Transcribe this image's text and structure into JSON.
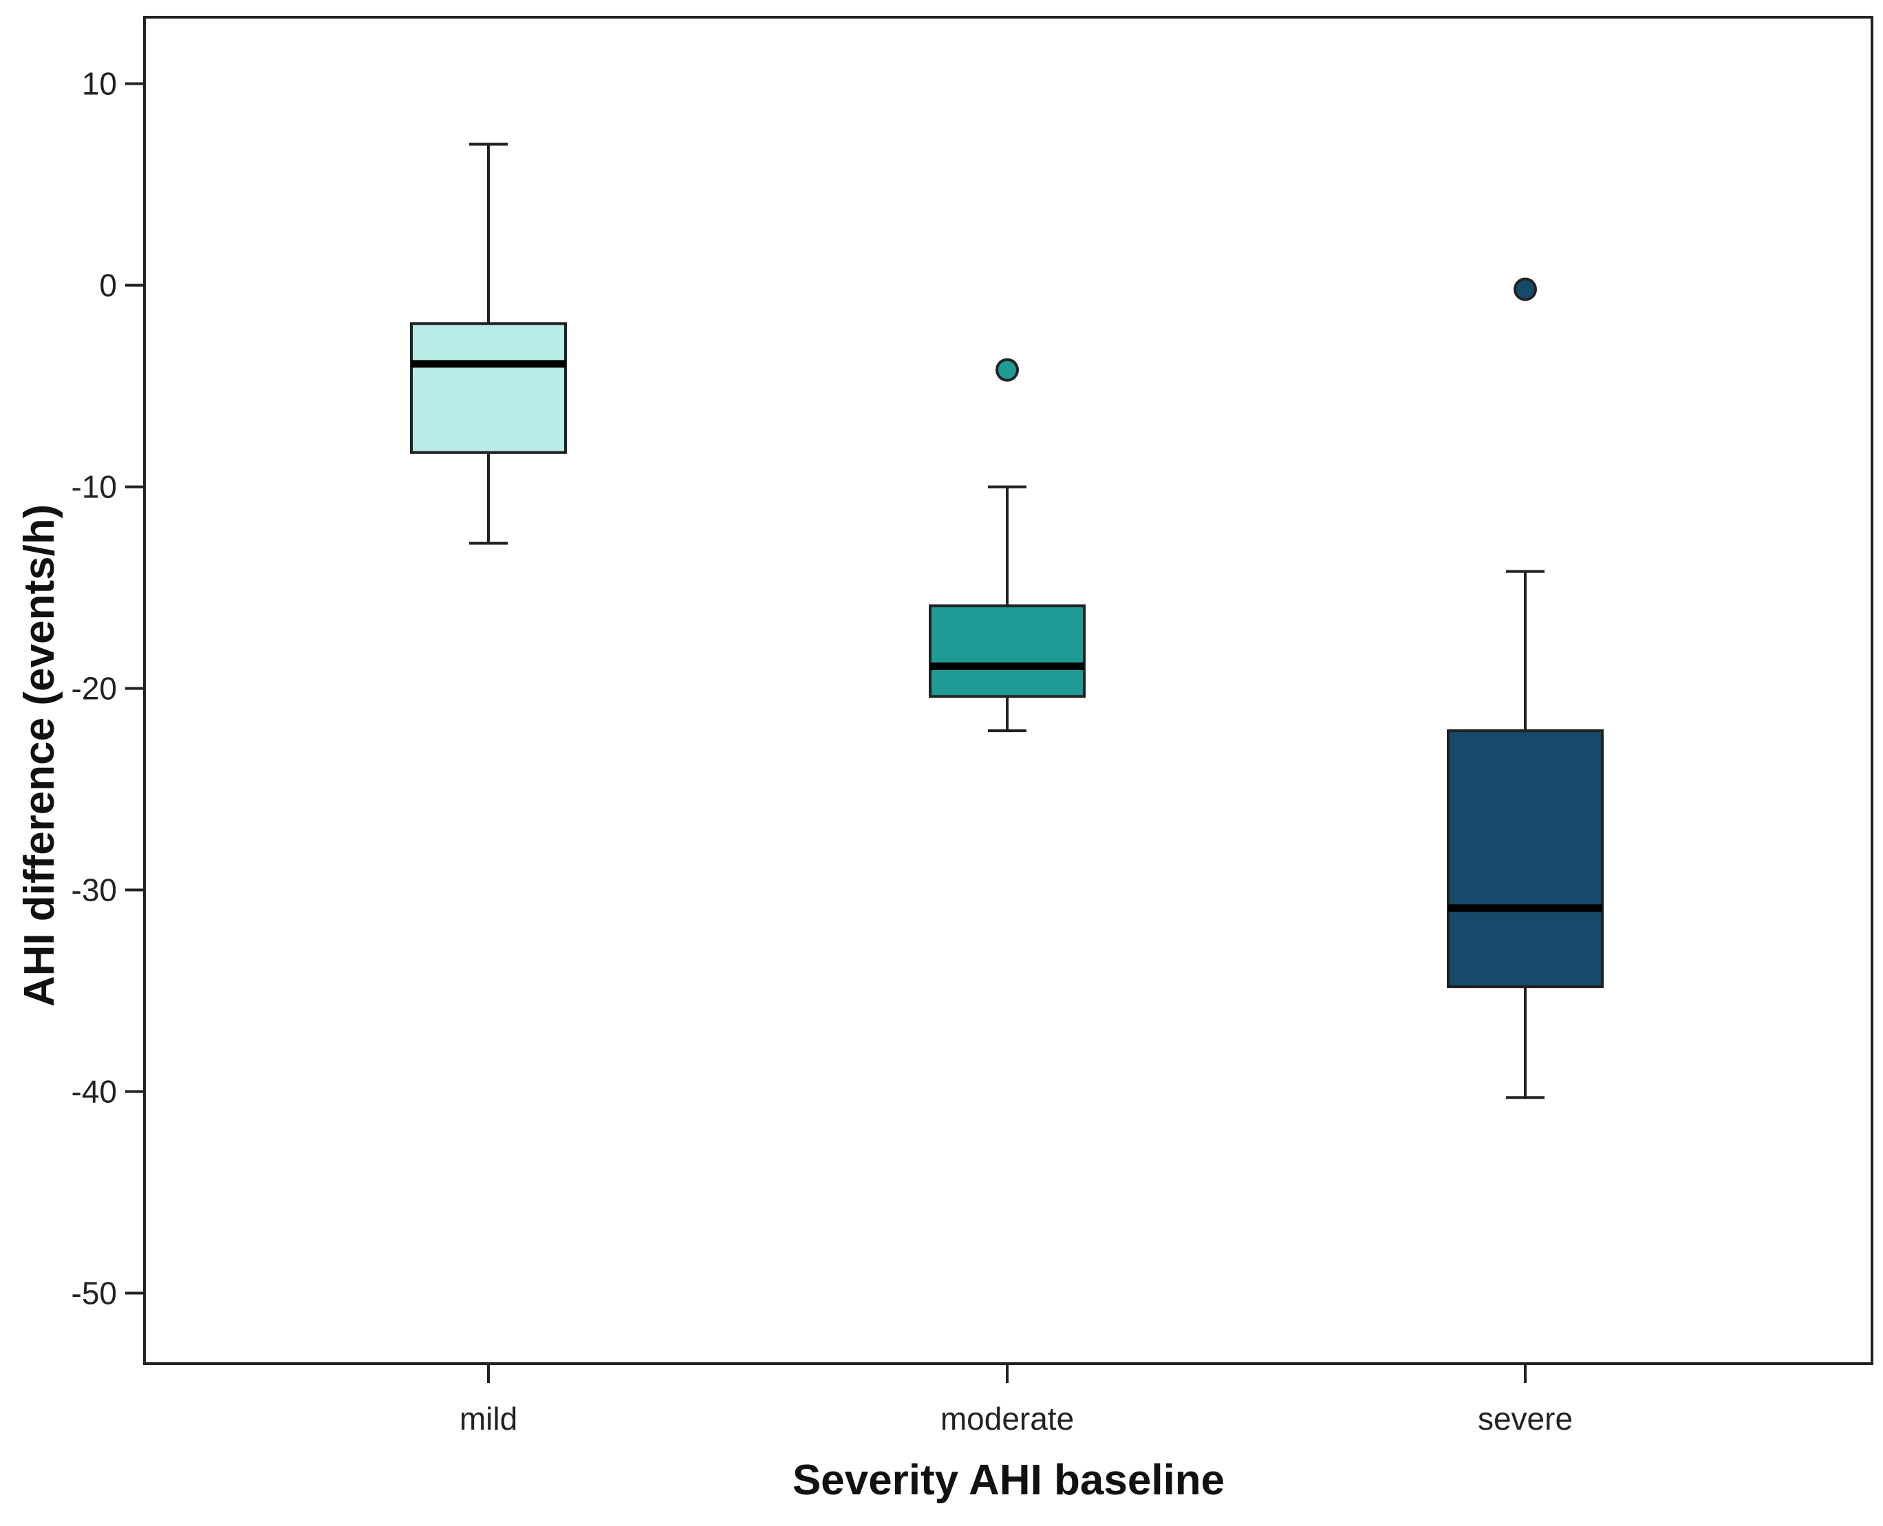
{
  "chart_data": {
    "type": "box",
    "title": "",
    "xlabel": "Severity AHI baseline",
    "ylabel": "AHI difference (events/h)",
    "ylim": [
      -53.5,
      13.3
    ],
    "yticks": [
      10,
      0,
      -10,
      -20,
      -30,
      -40,
      -50
    ],
    "ytick_labels": [
      "10",
      "0",
      "-10",
      "-20",
      "-30",
      "-40",
      "-50"
    ],
    "categories": [
      "mild",
      "moderate",
      "severe"
    ],
    "boxes": [
      {
        "category": "mild",
        "whisker_low": -12.8,
        "q1": -8.3,
        "median": -3.9,
        "q3": -1.9,
        "whisker_high": 7.0,
        "outliers": [],
        "fill_color": "#b9ece6",
        "outlier_color": ""
      },
      {
        "category": "moderate",
        "whisker_low": -22.1,
        "q1": -20.4,
        "median": -18.9,
        "q3": -15.9,
        "whisker_high": -10.0,
        "outliers": [
          -4.2
        ],
        "fill_color": "#1d9b94",
        "outlier_color": "#1d9b94"
      },
      {
        "category": "severe",
        "whisker_low": -40.3,
        "q1": -34.8,
        "median": -30.9,
        "q3": -22.1,
        "whisker_high": -14.2,
        "outliers": [
          -0.2
        ],
        "fill_color": "#154a6b",
        "outlier_color": "#154a6b"
      }
    ],
    "grid": false,
    "legend": "none"
  }
}
